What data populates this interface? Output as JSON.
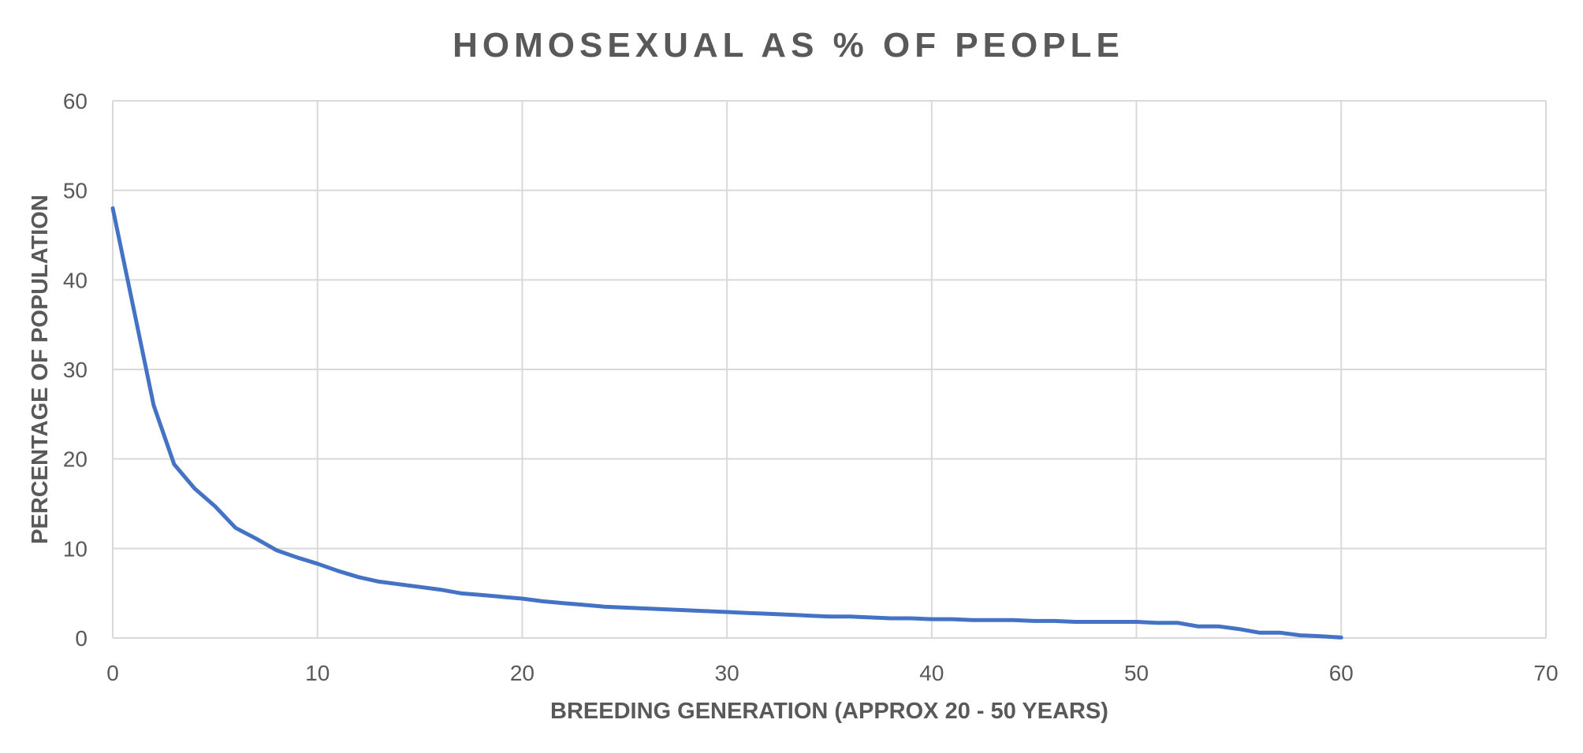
{
  "chart_data": {
    "type": "line",
    "title": "HOMOSEXUAL AS % OF PEOPLE",
    "xlabel": "BREEDING GENERATION (APPROX 20 - 50 YEARS)",
    "ylabel": "PERCENTAGE OF POPULATION",
    "xlim": [
      0,
      70
    ],
    "ylim": [
      0,
      60
    ],
    "x_ticks": [
      0,
      10,
      20,
      30,
      40,
      50,
      60,
      70
    ],
    "y_ticks": [
      0,
      10,
      20,
      30,
      40,
      50,
      60
    ],
    "grid": true,
    "legend": "none",
    "colors": {
      "line": "#4472c4",
      "grid": "#d9d9d9",
      "text": "#595959"
    },
    "series": [
      {
        "x": [
          0,
          1,
          2,
          3,
          4,
          5,
          6,
          7,
          8,
          9,
          10,
          11,
          12,
          13,
          14,
          15,
          16,
          17,
          18,
          19,
          20,
          21,
          22,
          23,
          24,
          25,
          26,
          27,
          28,
          29,
          30,
          31,
          32,
          33,
          34,
          35,
          36,
          37,
          38,
          39,
          40,
          41,
          42,
          43,
          44,
          45,
          46,
          47,
          48,
          49,
          50,
          51,
          52,
          53,
          54,
          55,
          56,
          57,
          58,
          59,
          60
        ],
        "values": [
          48,
          37,
          26,
          19.4,
          16.7,
          14.7,
          12.3,
          11.1,
          9.8,
          9,
          8.3,
          7.5,
          6.8,
          6.3,
          6,
          5.7,
          5.4,
          5,
          4.8,
          4.6,
          4.4,
          4.1,
          3.9,
          3.7,
          3.5,
          3.4,
          3.3,
          3.2,
          3.1,
          3,
          2.9,
          2.8,
          2.7,
          2.6,
          2.5,
          2.4,
          2.4,
          2.3,
          2.2,
          2.2,
          2.1,
          2.1,
          2,
          2,
          2,
          1.9,
          1.9,
          1.8,
          1.8,
          1.8,
          1.8,
          1.7,
          1.7,
          1.3,
          1.3,
          1,
          0.6,
          0.6,
          0.3,
          0.2,
          0.05
        ]
      }
    ]
  }
}
